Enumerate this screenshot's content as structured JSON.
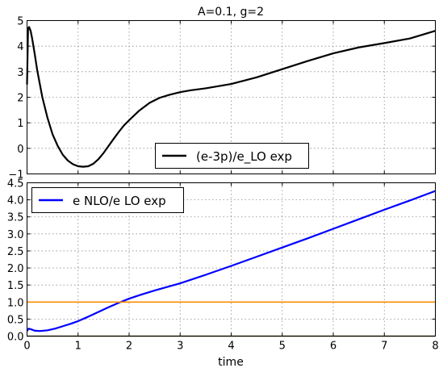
{
  "chart_data": [
    {
      "type": "line",
      "title": "A=0.1, g=2",
      "xlabel": "",
      "ylabel": "",
      "xlim": [
        0,
        8
      ],
      "ylim": [
        -1,
        5
      ],
      "xticks": [
        0,
        1,
        2,
        3,
        4,
        5,
        6,
        7,
        8
      ],
      "xticks_labeled": false,
      "yticks": [
        -1,
        0,
        1,
        2,
        3,
        4,
        5
      ],
      "ytick_labels": [
        "−1",
        "0",
        "1",
        "2",
        "3",
        "4",
        "5"
      ],
      "grid": true,
      "legend": {
        "placement": "lower-center"
      },
      "series": [
        {
          "name": "(e-3p)/e_LO exp",
          "color": "#000000",
          "x": [
            0.0,
            0.02,
            0.04,
            0.07,
            0.1,
            0.15,
            0.2,
            0.3,
            0.4,
            0.5,
            0.6,
            0.7,
            0.8,
            0.9,
            1.0,
            1.1,
            1.2,
            1.3,
            1.4,
            1.5,
            1.6,
            1.7,
            1.8,
            1.9,
            2.0,
            2.2,
            2.4,
            2.6,
            2.8,
            3.0,
            3.2,
            3.5,
            4.0,
            4.5,
            5.0,
            5.5,
            6.0,
            6.5,
            7.0,
            7.5,
            8.0
          ],
          "values": [
            2.5,
            4.7,
            4.75,
            4.6,
            4.3,
            3.7,
            3.05,
            2.0,
            1.2,
            0.55,
            0.1,
            -0.25,
            -0.48,
            -0.62,
            -0.7,
            -0.72,
            -0.7,
            -0.6,
            -0.42,
            -0.18,
            0.1,
            0.38,
            0.65,
            0.9,
            1.1,
            1.48,
            1.78,
            1.98,
            2.1,
            2.2,
            2.27,
            2.35,
            2.52,
            2.78,
            3.1,
            3.42,
            3.72,
            3.95,
            4.12,
            4.3,
            4.6
          ]
        }
      ]
    },
    {
      "type": "line",
      "title": "",
      "xlabel": "time",
      "ylabel": "",
      "xlim": [
        0,
        8
      ],
      "ylim": [
        0,
        4.5
      ],
      "xticks": [
        0,
        1,
        2,
        3,
        4,
        5,
        6,
        7,
        8
      ],
      "xtick_labels": [
        "0",
        "1",
        "2",
        "3",
        "4",
        "5",
        "6",
        "7",
        "8"
      ],
      "yticks": [
        0,
        0.5,
        1.0,
        1.5,
        2.0,
        2.5,
        3.0,
        3.5,
        4.0,
        4.5
      ],
      "ytick_labels": [
        "0.0",
        "0.5",
        "1.0",
        "1.5",
        "2.0",
        "2.5",
        "3.0",
        "3.5",
        "4.0",
        "4.5"
      ],
      "grid": true,
      "legend": {
        "placement": "upper-left"
      },
      "series": [
        {
          "name": "e NLO/e LO exp",
          "color": "#0000ff",
          "x": [
            0.0,
            0.03,
            0.08,
            0.15,
            0.25,
            0.4,
            0.55,
            0.7,
            0.85,
            1.0,
            1.2,
            1.4,
            1.6,
            1.8,
            2.0,
            2.2,
            2.5,
            3.0,
            3.5,
            4.0,
            4.5,
            5.0,
            5.5,
            6.0,
            6.5,
            7.0,
            7.5,
            8.0
          ],
          "values": [
            0.15,
            0.22,
            0.2,
            0.16,
            0.15,
            0.17,
            0.22,
            0.29,
            0.36,
            0.44,
            0.57,
            0.71,
            0.85,
            0.98,
            1.1,
            1.2,
            1.34,
            1.55,
            1.8,
            2.06,
            2.33,
            2.6,
            2.87,
            3.15,
            3.43,
            3.71,
            3.98,
            4.26
          ]
        },
        {
          "color": "#ff8c00",
          "x": [
            0,
            8
          ],
          "values": [
            1.0,
            1.0
          ]
        },
        {
          "color": "#6b4c1a",
          "x": [
            0,
            8
          ],
          "values": [
            0.0,
            0.0
          ]
        }
      ]
    }
  ]
}
